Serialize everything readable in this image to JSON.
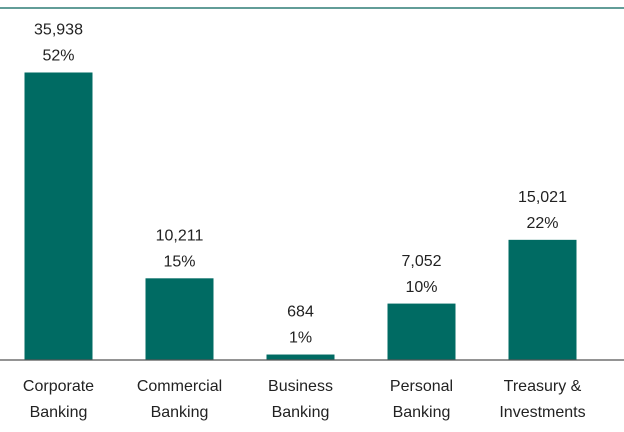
{
  "chart_data": {
    "type": "bar",
    "categories": [
      "Corporate Banking",
      "Commercial Banking",
      "Business Banking",
      "Personal Banking",
      "Treasury & Investments"
    ],
    "values": [
      35938,
      10211,
      684,
      7052,
      15021
    ],
    "value_labels": [
      "35,938",
      "10,211",
      "684",
      "7,052",
      "15,021"
    ],
    "shares": [
      52,
      15,
      1,
      10,
      22
    ],
    "share_labels": [
      "52%",
      "15%",
      "1%",
      "10%",
      "22%"
    ],
    "color": "#006b63",
    "ylim": [
      0,
      44000
    ]
  }
}
